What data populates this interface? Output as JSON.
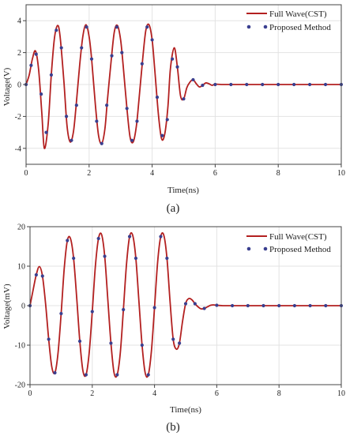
{
  "colors": {
    "full_wave": "#b32020",
    "proposed": "#3a3f8f",
    "grid": "#e3e3e3",
    "axis": "#444444"
  },
  "chart_data": [
    {
      "type": "line",
      "caption": "(a)",
      "xlabel": "Time(ns)",
      "ylabel": "Voltage(V)",
      "xlim": [
        0,
        10
      ],
      "ylim": [
        -5,
        5
      ],
      "xticks": [
        "0",
        "2",
        "4",
        "6",
        "8",
        "10"
      ],
      "yticks": [
        "-4",
        "-2",
        "0",
        "2",
        "4"
      ],
      "grid": true,
      "legend_position": "top-right",
      "series": [
        {
          "name": "Full Wave(CST)",
          "style": "line",
          "x": [
            0,
            0.1,
            0.2,
            0.3,
            0.4,
            0.5,
            0.58,
            0.7,
            0.8,
            0.9,
            1.0,
            1.08,
            1.2,
            1.3,
            1.4,
            1.5,
            1.58,
            1.7,
            1.8,
            1.9,
            2.0,
            2.08,
            2.2,
            2.3,
            2.4,
            2.5,
            2.58,
            2.7,
            2.8,
            2.9,
            3.0,
            3.08,
            3.2,
            3.3,
            3.4,
            3.5,
            3.58,
            3.7,
            3.8,
            3.9,
            4.0,
            4.08,
            4.2,
            4.3,
            4.4,
            4.5,
            4.58,
            4.7,
            4.8,
            4.9,
            5.0,
            5.1,
            5.2,
            5.3,
            5.4,
            5.5,
            5.6,
            5.7,
            5.8,
            5.9,
            6.0,
            6.2,
            6.5,
            7.0,
            8.0,
            9.0,
            10.0
          ],
          "y": [
            0,
            0.6,
            1.6,
            2.1,
            0.9,
            -1.8,
            -4.0,
            -2.5,
            0.6,
            2.9,
            3.7,
            3.0,
            0.2,
            -2.6,
            -3.6,
            -3.0,
            -1.5,
            1.2,
            3.0,
            3.75,
            3.0,
            1.6,
            -1.3,
            -3.2,
            -3.7,
            -2.8,
            -1.0,
            1.5,
            3.3,
            3.7,
            2.8,
            1.2,
            -1.5,
            -3.3,
            -3.6,
            -2.6,
            -1.0,
            1.6,
            3.4,
            3.75,
            2.8,
            1.0,
            -1.9,
            -3.4,
            -3.1,
            -1.4,
            1.0,
            2.3,
            1.1,
            -0.7,
            -0.9,
            -0.2,
            0.15,
            0.3,
            0.05,
            -0.15,
            -0.05,
            0.1,
            0.05,
            -0.05,
            0.02,
            0,
            0,
            0,
            0,
            0,
            0
          ]
        },
        {
          "name": "Proposed Method",
          "style": "markers",
          "x": [
            0,
            0.16,
            0.32,
            0.48,
            0.64,
            0.8,
            0.96,
            1.12,
            1.28,
            1.44,
            1.6,
            1.76,
            1.92,
            2.08,
            2.24,
            2.4,
            2.56,
            2.72,
            2.88,
            3.04,
            3.2,
            3.36,
            3.52,
            3.68,
            3.84,
            4.0,
            4.16,
            4.32,
            4.48,
            4.64,
            4.8,
            5.0,
            5.3,
            5.6,
            6.0,
            6.5,
            7.0,
            7.5,
            8.0,
            8.5,
            9.0,
            9.5,
            10.0
          ],
          "y": [
            0,
            1.2,
            1.9,
            -0.6,
            -3.0,
            0.6,
            3.4,
            2.3,
            -2.0,
            -3.5,
            -1.3,
            2.3,
            3.6,
            1.6,
            -2.3,
            -3.7,
            -1.3,
            1.8,
            3.6,
            2.0,
            -1.5,
            -3.5,
            -2.3,
            1.3,
            3.6,
            2.8,
            -0.8,
            -3.2,
            -2.2,
            1.6,
            1.1,
            -0.9,
            0.3,
            -0.05,
            0,
            0,
            0,
            0,
            0,
            0,
            0,
            0,
            0
          ]
        }
      ]
    },
    {
      "type": "line",
      "caption": "(b)",
      "xlabel": "Time(ns)",
      "ylabel": "Voltage(mV)",
      "xlim": [
        0,
        10
      ],
      "ylim": [
        -20,
        20
      ],
      "xticks": [
        "0",
        "2",
        "4",
        "6",
        "8",
        "10"
      ],
      "yticks": [
        "-20",
        "-10",
        "0",
        "10",
        "20"
      ],
      "grid": true,
      "legend_position": "top-right",
      "series": [
        {
          "name": "Full Wave(CST)",
          "style": "line",
          "x": [
            0,
            0.1,
            0.2,
            0.3,
            0.4,
            0.5,
            0.6,
            0.7,
            0.8,
            0.9,
            1.0,
            1.1,
            1.2,
            1.3,
            1.4,
            1.5,
            1.6,
            1.7,
            1.8,
            1.9,
            2.0,
            2.1,
            2.2,
            2.3,
            2.4,
            2.5,
            2.6,
            2.7,
            2.8,
            2.9,
            3.0,
            3.1,
            3.2,
            3.3,
            3.4,
            3.5,
            3.6,
            3.7,
            3.8,
            3.9,
            4.0,
            4.1,
            4.2,
            4.3,
            4.4,
            4.5,
            4.6,
            4.7,
            4.8,
            4.9,
            5.0,
            5.1,
            5.2,
            5.3,
            5.4,
            5.5,
            5.6,
            5.7,
            5.8,
            5.9,
            6.0,
            6.2,
            6.5,
            7.0,
            8.0,
            9.0,
            10.0
          ],
          "y": [
            0,
            4,
            7.8,
            9.9,
            7.5,
            0.5,
            -8.5,
            -15.5,
            -17.0,
            -12.0,
            -2.0,
            9.5,
            16.5,
            17.0,
            12.0,
            2.0,
            -9.0,
            -16.5,
            -17.5,
            -12.0,
            -1.5,
            10.0,
            17.0,
            18.0,
            12.5,
            1.5,
            -9.5,
            -17.0,
            -17.5,
            -12.0,
            -1.0,
            10.5,
            17.5,
            17.8,
            12.0,
            1.0,
            -10.0,
            -17.0,
            -17.5,
            -11.5,
            -0.5,
            11.0,
            17.5,
            17.8,
            12.0,
            1.0,
            -8.5,
            -11.0,
            -9.5,
            -4.0,
            0.5,
            1.8,
            1.5,
            0.5,
            -0.3,
            -0.8,
            -0.7,
            -0.3,
            0.1,
            0.2,
            0.1,
            0,
            0,
            0,
            0,
            0,
            0
          ]
        },
        {
          "name": "Proposed Method",
          "style": "markers",
          "x": [
            0,
            0.2,
            0.4,
            0.6,
            0.8,
            1.0,
            1.2,
            1.4,
            1.6,
            1.8,
            2.0,
            2.2,
            2.4,
            2.6,
            2.8,
            3.0,
            3.2,
            3.4,
            3.6,
            3.8,
            4.0,
            4.2,
            4.4,
            4.6,
            4.8,
            5.0,
            5.3,
            5.6,
            6.0,
            6.5,
            7.0,
            7.5,
            8.0,
            8.5,
            9.0,
            9.5,
            10.0
          ],
          "y": [
            0,
            7.8,
            7.5,
            -8.5,
            -17.0,
            -2.0,
            16.5,
            12.0,
            -9.0,
            -17.5,
            -1.5,
            17.0,
            12.5,
            -9.5,
            -17.5,
            -1.0,
            17.5,
            12.0,
            -10.0,
            -17.5,
            -0.5,
            17.5,
            12.0,
            -8.5,
            -9.5,
            0.5,
            0.5,
            -0.7,
            0.1,
            0,
            0,
            0,
            0,
            0,
            0,
            0,
            0
          ]
        }
      ]
    }
  ]
}
